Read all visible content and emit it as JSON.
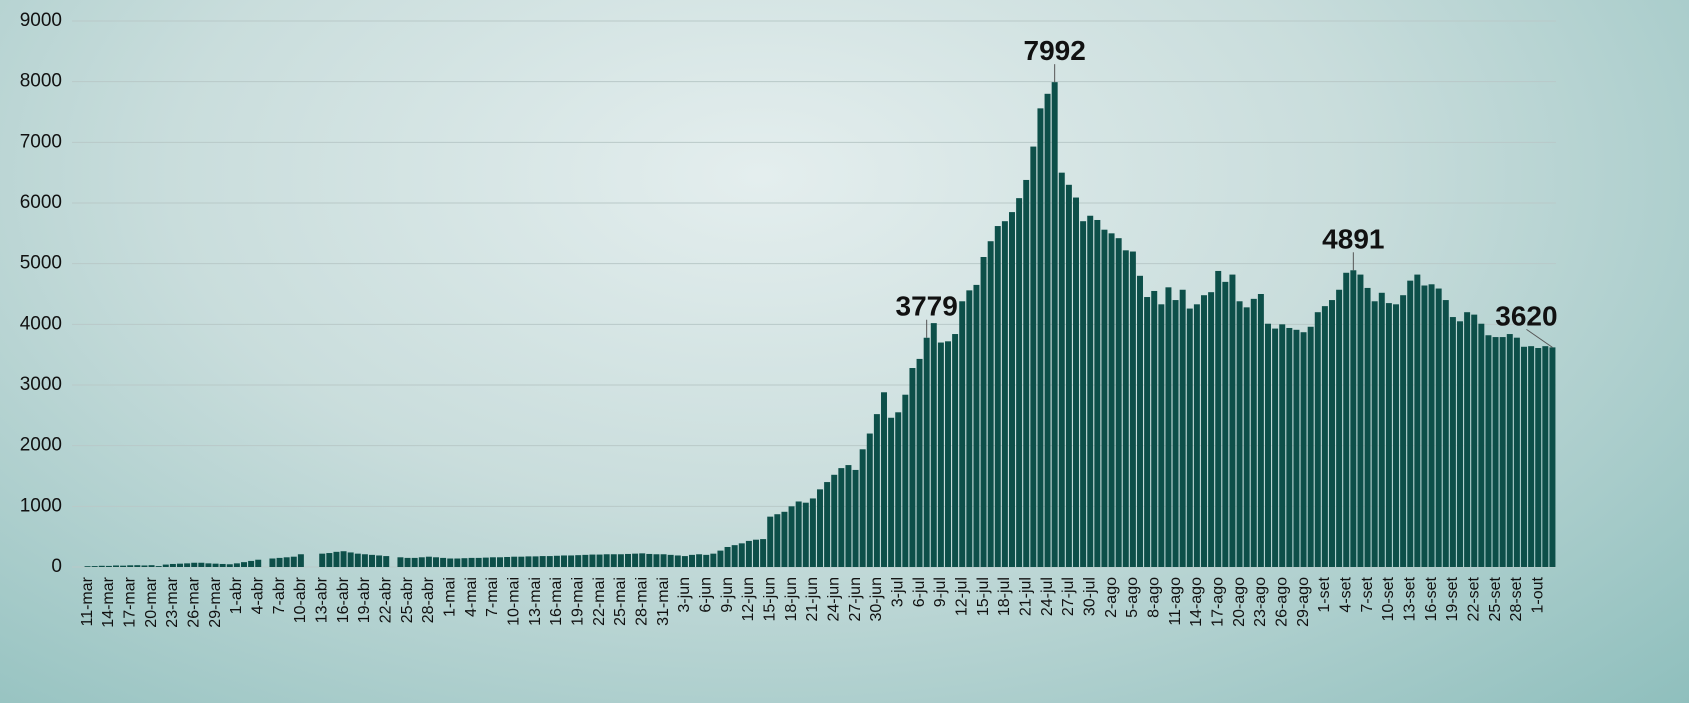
{
  "chart_data": {
    "type": "bar",
    "categories": [
      "11-mar",
      null,
      null,
      "14-mar",
      null,
      null,
      "17-mar",
      null,
      null,
      "20-mar",
      null,
      null,
      "23-mar",
      null,
      null,
      "26-mar",
      null,
      null,
      "29-mar",
      null,
      null,
      "1-abr",
      null,
      null,
      "4-abr",
      null,
      null,
      "7-abr",
      null,
      null,
      "10-abr",
      null,
      null,
      "13-abr",
      null,
      null,
      "16-abr",
      null,
      null,
      "19-abr",
      null,
      null,
      "22-abr",
      null,
      null,
      "25-abr",
      null,
      null,
      "28-abr",
      null,
      null,
      "1-mai",
      null,
      null,
      "4-mai",
      null,
      null,
      "7-mai",
      null,
      null,
      "10-mai",
      null,
      null,
      "13-mai",
      null,
      null,
      "16-mai",
      null,
      null,
      "19-mai",
      null,
      null,
      "22-mai",
      null,
      null,
      "25-mai",
      null,
      null,
      "28-mai",
      null,
      null,
      "31-mai",
      null,
      null,
      "3-jun",
      null,
      null,
      "6-jun",
      null,
      null,
      "9-jun",
      null,
      null,
      "12-jun",
      null,
      null,
      "15-jun",
      null,
      null,
      "18-jun",
      null,
      null,
      "21-jun",
      null,
      null,
      "24-jun",
      null,
      null,
      "27-jun",
      null,
      null,
      "30-jun",
      null,
      null,
      "3-jul",
      null,
      null,
      "6-jul",
      null,
      null,
      "9-jul",
      null,
      null,
      "12-jul",
      null,
      null,
      "15-jul",
      null,
      null,
      "18-jul",
      null,
      null,
      "21-jul",
      null,
      null,
      "24-jul",
      null,
      null,
      "27-jul",
      null,
      null,
      "30-jul",
      null,
      null,
      "2-ago",
      null,
      null,
      "5-ago",
      null,
      null,
      "8-ago",
      null,
      null,
      "11-ago",
      null,
      null,
      "14-ago",
      null,
      null,
      "17-ago",
      null,
      null,
      "20-ago",
      null,
      null,
      "23-ago",
      null,
      null,
      "26-ago",
      null,
      null,
      "29-ago",
      null,
      null,
      "1-set",
      null,
      null,
      "4-set",
      null,
      null,
      "7-set",
      null,
      null,
      "10-set",
      null,
      null,
      "13-set",
      null,
      null,
      "16-set",
      null,
      null,
      "19-set",
      null,
      null,
      "22-set",
      null,
      null,
      "25-set",
      null,
      null,
      "28-set",
      null,
      null,
      "1-out",
      null,
      null
    ],
    "values": [
      13,
      15,
      20,
      18,
      25,
      22,
      28,
      30,
      25,
      30,
      15,
      40,
      50,
      55,
      60,
      70,
      70,
      60,
      55,
      50,
      45,
      60,
      80,
      100,
      120,
      0,
      140,
      150,
      160,
      170,
      210,
      0,
      0,
      220,
      230,
      250,
      260,
      240,
      220,
      210,
      200,
      190,
      180,
      0,
      160,
      150,
      150,
      160,
      170,
      160,
      150,
      140,
      140,
      145,
      150,
      150,
      155,
      160,
      160,
      165,
      170,
      170,
      175,
      175,
      180,
      180,
      185,
      190,
      190,
      195,
      200,
      205,
      205,
      210,
      210,
      210,
      215,
      220,
      225,
      215,
      210,
      210,
      200,
      190,
      180,
      200,
      210,
      200,
      220,
      270,
      330,
      360,
      390,
      430,
      450,
      460,
      830,
      870,
      910,
      1000,
      1080,
      1060,
      1130,
      1280,
      1400,
      1520,
      1630,
      1680,
      1600,
      1940,
      2200,
      2520,
      2880,
      2460,
      2550,
      2840,
      3280,
      3430,
      3779,
      4020,
      3700,
      3720,
      3840,
      4380,
      4560,
      4650,
      5110,
      5370,
      5620,
      5700,
      5850,
      6080,
      6380,
      6930,
      7560,
      7800,
      7992,
      6500,
      6300,
      6090,
      5700,
      5790,
      5720,
      5560,
      5500,
      5420,
      5220,
      5200,
      4800,
      4450,
      4550,
      4330,
      4610,
      4400,
      4570,
      4260,
      4330,
      4480,
      4530,
      4880,
      4700,
      4820,
      4380,
      4280,
      4420,
      4500,
      4010,
      3930,
      4000,
      3940,
      3910,
      3870,
      3960,
      4200,
      4300,
      4400,
      4570,
      4850,
      4891,
      4820,
      4600,
      4380,
      4520,
      4350,
      4330,
      4480,
      4720,
      4820,
      4640,
      4660,
      4590,
      4400,
      4120,
      4050,
      4200,
      4160,
      4010,
      3820,
      3790,
      3790,
      3840,
      3780,
      3630,
      3640,
      3610,
      3640,
      3620
    ],
    "annotations": [
      3779,
      7992,
      4891,
      3620
    ],
    "color": "#0d4f49",
    "ylim": [
      0,
      9000
    ],
    "yticks": [
      0,
      1000,
      2000,
      3000,
      4000,
      5000,
      6000,
      7000,
      8000,
      9000
    ],
    "grid": true
  }
}
